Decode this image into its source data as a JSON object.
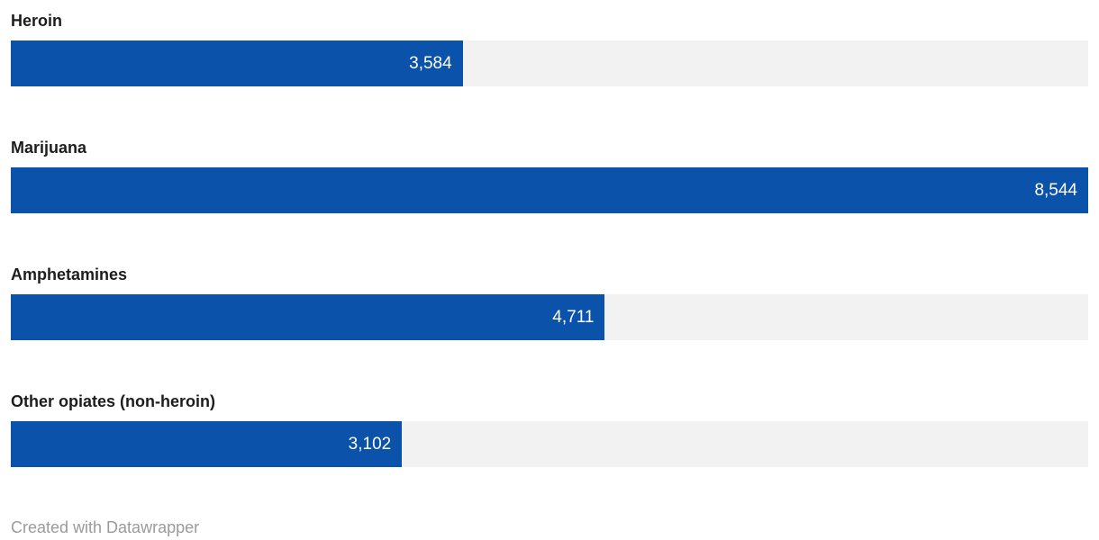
{
  "chart_data": {
    "type": "bar",
    "orientation": "horizontal",
    "categories": [
      "Heroin",
      "Marijuana",
      "Amphetamines",
      "Other opiates (non-heroin)"
    ],
    "values": [
      3584,
      8544,
      4711,
      3102
    ],
    "value_labels": [
      "3,584",
      "8,544",
      "4,711",
      "3,102"
    ],
    "title": "",
    "xlabel": "",
    "ylabel": "",
    "xlim": [
      0,
      8544
    ],
    "grid": false,
    "legend": false,
    "bar_color": "#0b52ab",
    "track_color": "#f2f2f2",
    "value_label_color": "#ffffff",
    "category_label_color": "#1d1d1d"
  },
  "footer": {
    "credit": "Created with Datawrapper"
  }
}
